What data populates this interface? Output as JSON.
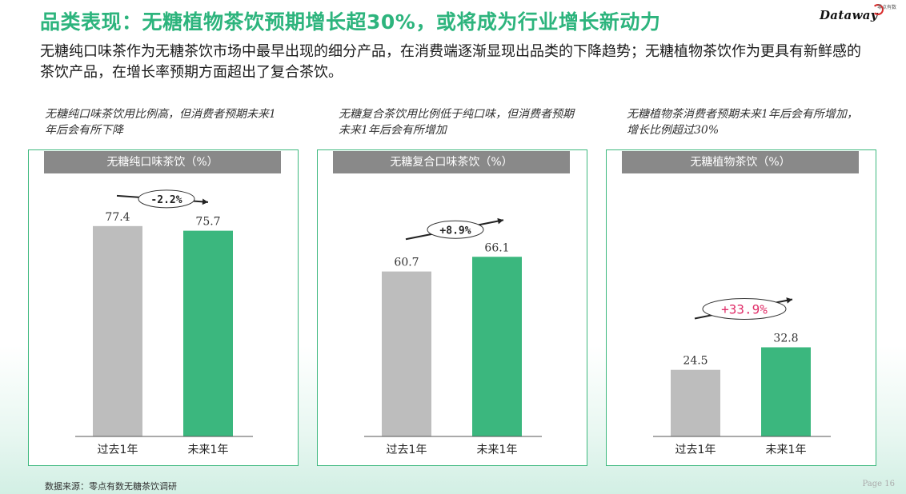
{
  "title": "品类表现：无糖植物茶饮预期增长超30%，或将成为行业增长新动力",
  "logo": {
    "text": "Dataway",
    "sub": "零点有数"
  },
  "intro": "无糖纯口味茶作为无糖茶饮市场中最早出现的细分产品，在消费端逐渐显现出品类的下降趋势；无糖植物茶饮作为更具有新鲜感的茶饮产品，在增长率预期方面超出了复合茶饮。",
  "notes": [
    "无糖纯口味茶饮用比例高，但消费者预期未来1年后会有所下降",
    "无糖复合茶饮用比例低于纯口味，但消费者预期未来1年后会有所增加",
    "无糖植物茶消费者预期未来1年后会有所增加，增长比例超过30%"
  ],
  "colors": {
    "accent": "#2db47d",
    "bar_past": "#bdbdbd",
    "bar_future": "#3bb77e",
    "highlight": "#e0306a"
  },
  "chart_data": [
    {
      "type": "bar",
      "title": "无糖纯口味茶饮（%）",
      "categories": [
        "过去1年",
        "未来1年"
      ],
      "values": [
        77.4,
        75.7
      ],
      "value_labels": [
        "77.4",
        "75.7"
      ],
      "change_label": "-2.2%",
      "change_highlight": false
    },
    {
      "type": "bar",
      "title": "无糖复合口味茶饮（%）",
      "categories": [
        "过去1年",
        "未来1年"
      ],
      "values": [
        60.7,
        66.1
      ],
      "value_labels": [
        "60.7",
        "66.1"
      ],
      "change_label": "+8.9%",
      "change_highlight": false
    },
    {
      "type": "bar",
      "title": "无糖植物茶饮（%）",
      "categories": [
        "过去1年",
        "未来1年"
      ],
      "values": [
        24.5,
        32.8
      ],
      "value_labels": [
        "24.5",
        "32.8"
      ],
      "change_label": "+33.9%",
      "change_highlight": true
    }
  ],
  "footer": {
    "source": "数据来源：零点有数无糖茶饮调研",
    "page": "Page 16"
  }
}
